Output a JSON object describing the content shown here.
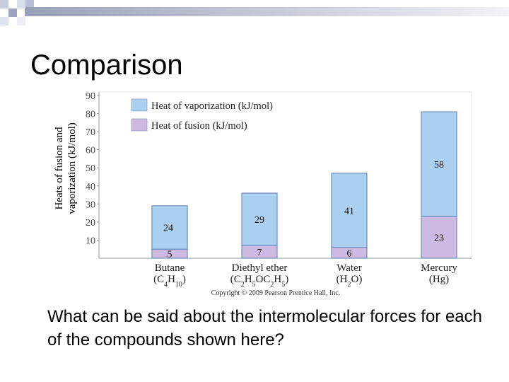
{
  "title": "Comparison",
  "question": "What can be said about the intermolecular forces for each of the compounds shown here?",
  "chart_data": {
    "type": "stacked_bar",
    "ylabel": [
      "Heats of fusion and",
      "vaporization (kJ/mol)"
    ],
    "categories": [
      "Butane",
      "Diethyl ether",
      "Water",
      "Mercury"
    ],
    "formulas": [
      "(C4H10)",
      "(C2H5OC2H5)",
      "(H2O)",
      "(Hg)"
    ],
    "series": [
      {
        "name": "Heat of fusion (kJ/mol)",
        "color": "#cdb9e2",
        "values": [
          5,
          7,
          6,
          23
        ]
      },
      {
        "name": "Heat of vaporization (kJ/mol)",
        "color": "#abcfef",
        "values": [
          24,
          29,
          41,
          58
        ]
      }
    ],
    "ylim": [
      0,
      90
    ],
    "yticks": [
      10,
      20,
      30,
      40,
      50,
      60,
      70,
      80,
      90
    ],
    "credit": "Copyright © 2009 Pearson Prentice Hall, Inc."
  }
}
